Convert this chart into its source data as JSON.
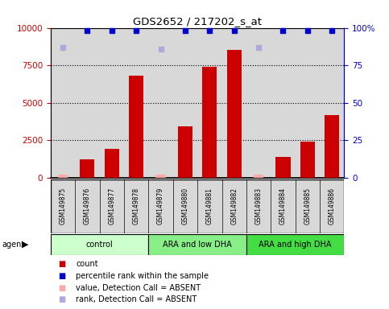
{
  "title": "GDS2652 / 217202_s_at",
  "samples": [
    "GSM149875",
    "GSM149876",
    "GSM149877",
    "GSM149878",
    "GSM149879",
    "GSM149880",
    "GSM149881",
    "GSM149882",
    "GSM149883",
    "GSM149884",
    "GSM149885",
    "GSM149886"
  ],
  "count_values": [
    null,
    1200,
    1900,
    6800,
    null,
    3400,
    7400,
    8500,
    null,
    1400,
    2400,
    4200
  ],
  "absent_value_values": [
    200,
    null,
    null,
    null,
    200,
    null,
    null,
    null,
    200,
    null,
    null,
    null
  ],
  "percentile_values": [
    null,
    98,
    98,
    98,
    null,
    98,
    98,
    98,
    null,
    98,
    98,
    98
  ],
  "absent_rank_values": [
    87,
    null,
    null,
    null,
    86,
    null,
    null,
    null,
    87,
    null,
    null,
    null
  ],
  "groups": [
    {
      "label": "control",
      "start": 0,
      "end": 4,
      "color": "#ccffcc"
    },
    {
      "label": "ARA and low DHA",
      "start": 4,
      "end": 8,
      "color": "#88ee88"
    },
    {
      "label": "ARA and high DHA",
      "start": 8,
      "end": 12,
      "color": "#44dd44"
    }
  ],
  "ylim_left": [
    0,
    10000
  ],
  "ylim_right": [
    0,
    100
  ],
  "yticks_left": [
    0,
    2500,
    5000,
    7500,
    10000
  ],
  "yticks_right": [
    0,
    25,
    50,
    75,
    100
  ],
  "bar_color": "#cc0000",
  "absent_value_color": "#ffaaaa",
  "percentile_color": "#0000cc",
  "absent_rank_color": "#aaaadd",
  "background_color": "#d8d8d8",
  "left_axis_color": "#cc0000",
  "right_axis_color": "#0000cc",
  "fig_width": 4.83,
  "fig_height": 3.84,
  "dpi": 100
}
